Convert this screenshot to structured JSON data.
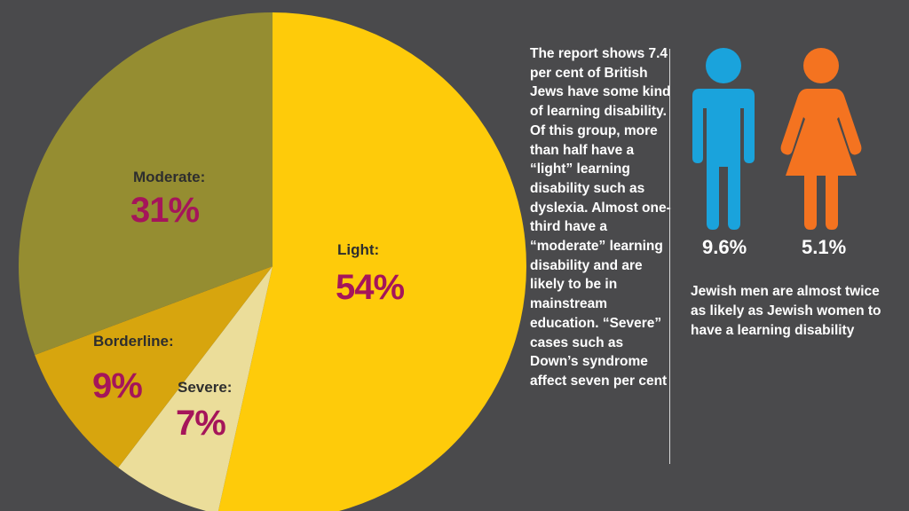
{
  "chart_data": {
    "type": "pie",
    "title": "",
    "slices": [
      {
        "label": "Light:",
        "value": 54,
        "display": "54%",
        "color": "#fecb0a"
      },
      {
        "label": "Severe:",
        "value": 7,
        "display": "7%",
        "color": "#ebdd9a"
      },
      {
        "label": "Borderline:",
        "value": 9,
        "display": "9%",
        "color": "#d7a50e"
      },
      {
        "label": "Moderate:",
        "value": 31,
        "display": "31%",
        "color": "#958d31"
      }
    ],
    "start_angle_deg": 0,
    "direction": "clockwise"
  },
  "report_text": "The report shows 7.4 per cent of British Jews have some kind of learning disability. Of this group, more than half have a “light” learning disability such as dyslexia. Almost one-third have a “moderate” learning disability and are likely to be in mainstream education. “Severe” cases such as Down’s syndrome affect seven per cent",
  "gender": {
    "men": {
      "percent": "9.6%",
      "color": "#1aa3dc",
      "icon": "man-icon"
    },
    "women": {
      "percent": "5.1%",
      "color": "#f47320",
      "icon": "woman-icon"
    },
    "caption": "Jewish men are almost twice as likely as Jewish women to have a learning disability"
  },
  "colors": {
    "background": "#4a4a4c",
    "value_text": "#a5155a"
  }
}
